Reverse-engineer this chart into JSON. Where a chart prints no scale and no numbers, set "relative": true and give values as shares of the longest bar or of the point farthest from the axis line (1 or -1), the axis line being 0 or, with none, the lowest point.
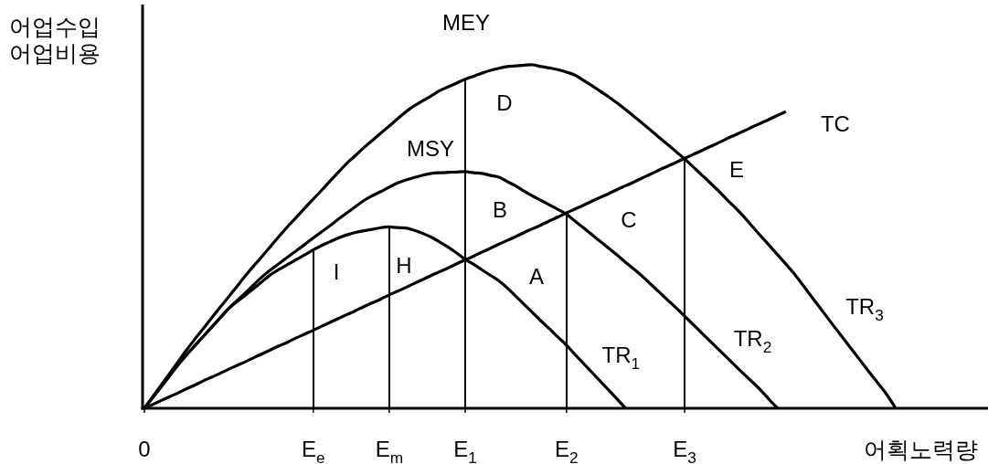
{
  "chart_data": {
    "type": "line",
    "relative": true,
    "xlabel": "어획노력량",
    "ylabel": "어업수입 어업비용",
    "categories": [
      "0",
      null,
      null,
      null,
      null,
      null,
      null,
      null,
      null,
      null,
      null,
      null,
      null,
      null,
      null,
      null,
      null,
      null,
      null,
      null,
      "E$_{e}$",
      null,
      null,
      null,
      null,
      null,
      null,
      null,
      null,
      "E$_{m}$",
      null,
      null,
      null,
      null,
      null,
      null,
      null,
      null,
      "E$_{1}$",
      null,
      null,
      null,
      null,
      null,
      null,
      null,
      null,
      null,
      null,
      null,
      "E$_{2}$",
      null,
      null,
      null,
      null,
      null,
      null,
      null,
      null,
      null,
      null,
      null,
      null,
      null,
      "E$_{3}$",
      null,
      null,
      null,
      null,
      null,
      null,
      null,
      null,
      null,
      null,
      null,
      null,
      null,
      null,
      null,
      null,
      null,
      null,
      null,
      null,
      null,
      null,
      null,
      null,
      null
    ],
    "series": [
      {
        "name": "TR$_{1}$",
        "color": "#000000",
        "values": [
          0,
          0.032,
          0.063,
          0.095,
          0.127,
          0.156,
          0.183,
          0.21,
          0.237,
          0.264,
          0.291,
          0.311,
          0.33,
          0.35,
          0.37,
          0.39,
          0.405,
          0.419,
          0.433,
          0.447,
          0.461,
          0.474,
          0.485,
          0.496,
          0.505,
          0.512,
          0.517,
          0.521,
          0.526,
          0.528,
          0.526,
          0.525,
          0.518,
          0.509,
          0.498,
          0.484,
          0.469,
          0.452,
          0.434,
          0.419,
          0.403,
          0.387,
          0.371,
          0.35,
          0.326,
          0.302,
          0.278,
          0.254,
          0.231,
          0.207,
          0.184,
          0.157,
          0.131,
          0.105,
          0.079,
          0.053,
          0.027,
          0,
          null,
          null,
          null,
          null,
          null,
          null,
          null,
          null,
          null,
          null,
          null,
          null,
          null,
          null,
          null,
          null,
          null,
          null,
          null,
          null,
          null,
          null,
          null,
          null,
          null,
          null,
          null,
          null,
          null,
          null,
          null,
          null
        ]
      },
      {
        "name": "TR$_{2}$",
        "color": "#000000",
        "values": [
          0,
          0.032,
          0.063,
          0.095,
          0.127,
          0.156,
          0.183,
          0.21,
          0.237,
          0.264,
          0.291,
          0.314,
          0.337,
          0.361,
          0.384,
          0.404,
          0.422,
          0.441,
          0.459,
          0.477,
          0.496,
          0.514,
          0.532,
          0.551,
          0.569,
          0.587,
          0.605,
          0.619,
          0.631,
          0.644,
          0.656,
          0.665,
          0.672,
          0.679,
          0.684,
          0.686,
          0.687,
          0.688,
          0.689,
          0.686,
          0.684,
          0.678,
          0.673,
          0.66,
          0.647,
          0.632,
          0.618,
          0.605,
          0.592,
          0.579,
          0.565,
          0.545,
          0.526,
          0.506,
          0.486,
          0.466,
          0.446,
          0.425,
          0.405,
          0.384,
          0.361,
          0.338,
          0.315,
          0.292,
          0.268,
          0.244,
          0.22,
          0.196,
          0.172,
          0.148,
          0.124,
          0.1,
          0.077,
          0.053,
          0.026,
          0,
          null,
          null,
          null,
          null,
          null,
          null,
          null,
          null,
          null,
          null,
          null,
          null,
          null,
          null
        ]
      },
      {
        "name": "TR$_{3}$",
        "color": "#000000",
        "values": [
          0,
          0.034,
          0.068,
          0.102,
          0.136,
          0.17,
          0.202,
          0.233,
          0.264,
          0.295,
          0.325,
          0.356,
          0.387,
          0.416,
          0.444,
          0.473,
          0.502,
          0.53,
          0.556,
          0.583,
          0.609,
          0.635,
          0.662,
          0.688,
          0.714,
          0.736,
          0.759,
          0.78,
          0.801,
          0.822,
          0.843,
          0.864,
          0.881,
          0.896,
          0.91,
          0.925,
          0.936,
          0.947,
          0.958,
          0.967,
          0.976,
          0.984,
          0.99,
          0.995,
          0.997,
          0.999,
          1,
          0.995,
          0.991,
          0.986,
          0.979,
          0.97,
          0.955,
          0.94,
          0.923,
          0.907,
          0.889,
          0.87,
          0.85,
          0.83,
          0.809,
          0.788,
          0.768,
          0.747,
          0.726,
          0.703,
          0.68,
          0.657,
          0.633,
          0.608,
          0.584,
          0.558,
          0.53,
          0.502,
          0.475,
          0.447,
          0.42,
          0.391,
          0.359,
          0.326,
          0.294,
          0.261,
          0.229,
          0.197,
          0.165,
          0.133,
          0.101,
          0.07,
          0.038,
          0
        ]
      },
      {
        "name": "TC",
        "color": "#000000",
        "values": [
          0,
          0.011,
          0.023,
          0.034,
          0.045,
          0.057,
          0.068,
          0.08,
          0.091,
          0.102,
          0.114,
          0.125,
          0.136,
          0.148,
          0.159,
          0.171,
          0.182,
          0.193,
          0.205,
          0.216,
          0.227,
          0.239,
          0.25,
          0.262,
          0.273,
          0.284,
          0.296,
          0.307,
          0.318,
          0.33,
          0.341,
          0.352,
          0.364,
          0.375,
          0.387,
          0.398,
          0.409,
          0.421,
          0.432,
          0.443,
          0.455,
          0.466,
          0.478,
          0.489,
          0.5,
          0.512,
          0.523,
          0.534,
          0.546,
          0.557,
          0.569,
          0.58,
          0.591,
          0.603,
          0.614,
          0.625,
          0.637,
          0.648,
          0.659,
          0.671,
          0.682,
          0.694,
          0.705,
          0.716,
          0.728,
          0.739,
          0.75,
          0.762,
          0.773,
          0.785,
          0.796,
          0.807,
          0.819,
          0.83,
          0.841,
          0.853,
          0.864,
          null,
          null,
          null,
          null,
          null,
          null,
          null,
          null,
          null,
          null,
          null,
          null,
          null
        ]
      },
      {
        "type": "bar",
        "color": "#000000",
        "values": [
          null,
          null,
          null,
          null,
          null,
          null,
          null,
          null,
          null,
          null,
          null,
          null,
          null,
          null,
          null,
          null,
          null,
          null,
          null,
          null,
          0.461,
          null,
          null,
          null,
          null,
          null,
          null,
          null,
          null,
          0.528,
          null,
          null,
          null,
          null,
          null,
          null,
          null,
          null,
          0.958,
          null,
          null,
          null,
          null,
          null,
          null,
          null,
          null,
          null,
          null,
          null,
          0.567,
          null,
          null,
          null,
          null,
          null,
          null,
          null,
          null,
          null,
          null,
          null,
          null,
          null,
          0.727,
          null,
          null,
          null,
          null,
          null,
          null,
          null,
          null,
          null,
          null,
          null,
          null,
          null,
          null,
          null,
          null,
          null,
          null,
          null,
          null,
          null,
          null,
          null,
          null,
          null
        ]
      }
    ],
    "annotations": [
      "MEY",
      "MSY",
      "D",
      "B",
      "C",
      "A",
      "H",
      "I",
      "E"
    ]
  }
}
